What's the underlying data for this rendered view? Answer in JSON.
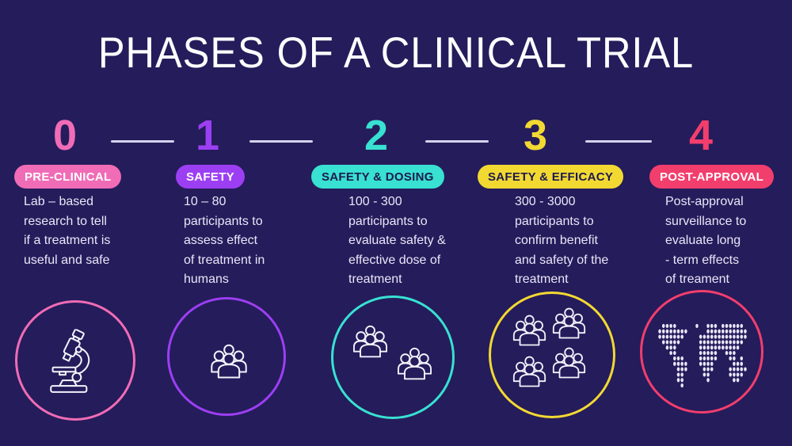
{
  "title": "PHASES OF A CLINICAL TRIAL",
  "colors": {
    "background": "#251c5b",
    "connector": "#d5d0ee",
    "body_text": "#eae6f8",
    "phase0_accent": "#f06cb6",
    "phase1_accent": "#9c3ff2",
    "phase2_accent": "#38e1d1",
    "phase3_accent": "#f2d932",
    "phase4_accent": "#f23e6d"
  },
  "phases": [
    {
      "number": "0",
      "label": "PRE-CLINICAL",
      "description": "Lab – based\nresearch to tell\nif a treatment is\nuseful and safe",
      "icon": "microscope-icon"
    },
    {
      "number": "1",
      "label": "SAFETY",
      "description": "10 – 80\nparticipants to\nassess effect\nof treatment in\nhumans",
      "icon": "people-group-icon"
    },
    {
      "number": "2",
      "label": "SAFETY & DOSING",
      "description": "100 - 300\nparticipants to\nevaluate safety &\neffective dose of\ntreatment",
      "icon": "two-people-groups-icon"
    },
    {
      "number": "3",
      "label": "SAFETY & EFFICACY",
      "description": "300 - 3000\nparticipants to\nconfirm benefit\nand safety of the\ntreatment",
      "icon": "four-people-groups-icon"
    },
    {
      "number": "4",
      "label": "POST-APPROVAL",
      "description": "Post-approval\nsurveillance to\nevaluate long\n- term effects\nof treament",
      "icon": "world-map-icon"
    }
  ]
}
